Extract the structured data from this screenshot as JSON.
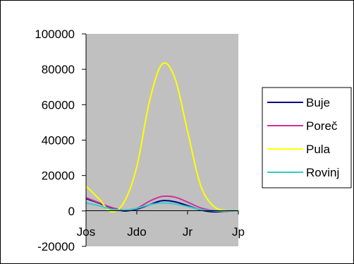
{
  "chart_data": {
    "type": "line",
    "categories": [
      "Jos",
      "Jdo",
      "Jr",
      "Jp"
    ],
    "x": [
      0,
      0.5,
      1,
      1.5,
      2,
      2.5,
      3,
      3.5,
      4,
      4.5,
      5,
      5.5,
      6
    ],
    "ylim": [
      -20000,
      100000
    ],
    "yticks": [
      100000,
      80000,
      60000,
      40000,
      20000,
      0,
      -20000
    ],
    "grid": false,
    "plot_background": "#c0c0c0",
    "legend_position": "right",
    "series": [
      {
        "name": "Buje",
        "color": "#000080",
        "values": [
          7000,
          4500,
          1800,
          0,
          1000,
          3500,
          5800,
          5200,
          3000,
          600,
          -500,
          -200,
          300
        ]
      },
      {
        "name": "Poreč",
        "color": "#cc3399",
        "values": [
          7500,
          4700,
          2000,
          500,
          1500,
          5500,
          8200,
          7800,
          5000,
          1800,
          200,
          -200,
          300
        ]
      },
      {
        "name": "Pula",
        "color": "#ffff00",
        "values": [
          14000,
          7000,
          -500,
          5000,
          25000,
          62000,
          83000,
          75000,
          45000,
          15000,
          3000,
          200,
          500
        ]
      },
      {
        "name": "Rovinj",
        "color": "#33cccc",
        "values": [
          4500,
          3000,
          1000,
          500,
          1500,
          3500,
          4500,
          4000,
          2500,
          800,
          100,
          0,
          300
        ]
      }
    ]
  }
}
